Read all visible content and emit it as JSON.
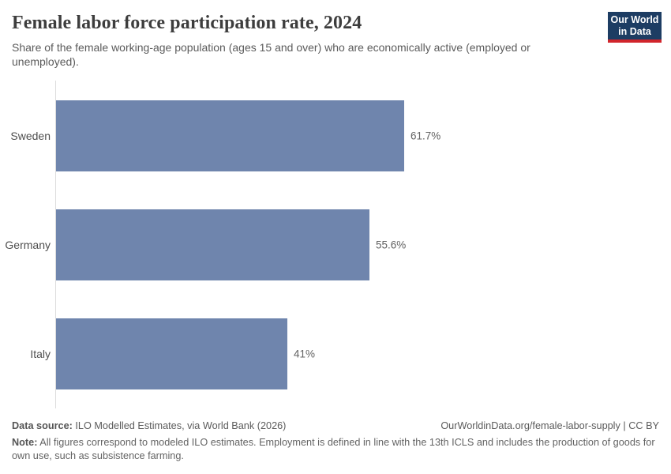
{
  "header": {
    "title": "Female labor force participation rate, 2024",
    "subtitle": "Share of the female working-age population (ages 15 and over) who are economically active (employed or unemployed).",
    "logo_line1": "Our World",
    "logo_line2": "in Data"
  },
  "chart_data": {
    "type": "bar",
    "orientation": "horizontal",
    "title": "Female labor force participation rate, 2024",
    "categories": [
      "Sweden",
      "Germany",
      "Italy"
    ],
    "values": [
      61.7,
      55.6,
      41
    ],
    "value_labels": [
      "61.7%",
      "55.6%",
      "41%"
    ],
    "xlabel": "",
    "ylabel": "",
    "xlim": [
      0,
      61.7
    ],
    "grid": false,
    "legend": "none",
    "bar_color": "#6f85ad"
  },
  "footer": {
    "datasource_label": "Data source:",
    "datasource_text": " ILO Modelled Estimates, via World Bank (2026)",
    "link": "OurWorldinData.org/female-labor-supply",
    "separator": " | ",
    "license": "CC BY",
    "note_label": "Note:",
    "note_text": " All figures correspond to modeled ILO estimates. Employment is defined in line with the 13th ICLS and includes the production of goods for own use, such as subsistence farming."
  },
  "colors": {
    "bar": "#6f85ad",
    "brand_navy": "#1d3d63",
    "brand_red": "#d1252c",
    "axis_line": "#dcdcdc",
    "title_text": "#3d3d3d",
    "body_text": "#5b5b5b"
  }
}
